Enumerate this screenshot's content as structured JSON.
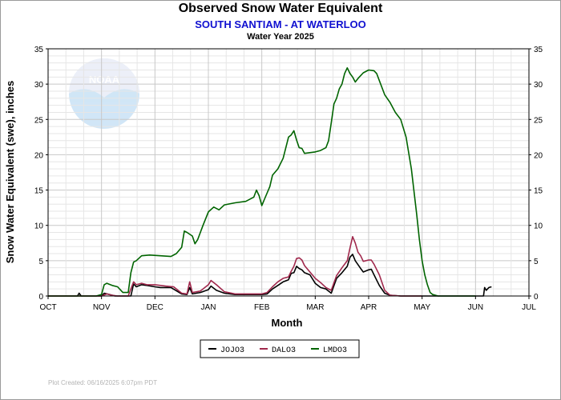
{
  "header": {
    "title": "Observed Snow Water Equivalent",
    "subtitle": "SOUTH SANTIAM - AT WATERLOO",
    "water_year": "Water Year 2025"
  },
  "footer": {
    "created": "Plot Created: 06/16/2025 6:07pm PDT"
  },
  "logo": {
    "text": "NOAA"
  },
  "colors": {
    "JOJO3": "#000000",
    "DALO3": "#a0284c",
    "LMDO3": "#006400"
  },
  "chart_data": {
    "type": "line",
    "xlabel": "Month",
    "ylabel": "Snow Water Equivalent (swe),  inches",
    "xlim": [
      0,
      9
    ],
    "ylim": [
      0,
      35
    ],
    "month_labels": [
      "OCT",
      "NOV",
      "DEC",
      "JAN",
      "FEB",
      "MAR",
      "APR",
      "MAY",
      "JUN",
      "JUL"
    ],
    "y_ticks": [
      0,
      5,
      10,
      15,
      20,
      25,
      30,
      35
    ],
    "grid": true,
    "legend_position": "bottom-center",
    "series": [
      {
        "name": "JOJO3",
        "color": "#000000",
        "points": [
          [
            0,
            0
          ],
          [
            0.55,
            0
          ],
          [
            0.58,
            0.4
          ],
          [
            0.62,
            0
          ],
          [
            1.0,
            0
          ],
          [
            1.05,
            0.4
          ],
          [
            1.15,
            0.2
          ],
          [
            1.25,
            0
          ],
          [
            1.55,
            0
          ],
          [
            1.6,
            1.7
          ],
          [
            1.65,
            1.3
          ],
          [
            1.75,
            1.6
          ],
          [
            1.85,
            1.5
          ],
          [
            2.0,
            1.3
          ],
          [
            2.1,
            1.2
          ],
          [
            2.3,
            1.2
          ],
          [
            2.5,
            0.3
          ],
          [
            2.6,
            0.2
          ],
          [
            2.65,
            1.2
          ],
          [
            2.7,
            0.3
          ],
          [
            2.85,
            0.5
          ],
          [
            3.0,
            0.9
          ],
          [
            3.05,
            1.4
          ],
          [
            3.15,
            0.8
          ],
          [
            3.3,
            0.4
          ],
          [
            3.5,
            0.2
          ],
          [
            3.8,
            0.2
          ],
          [
            4.0,
            0.2
          ],
          [
            4.1,
            0.3
          ],
          [
            4.2,
            1.0
          ],
          [
            4.3,
            1.5
          ],
          [
            4.4,
            2.0
          ],
          [
            4.5,
            2.3
          ],
          [
            4.55,
            3.2
          ],
          [
            4.6,
            3.3
          ],
          [
            4.65,
            4.2
          ],
          [
            4.7,
            3.9
          ],
          [
            4.75,
            3.7
          ],
          [
            4.8,
            3.3
          ],
          [
            4.9,
            3.0
          ],
          [
            5.0,
            1.8
          ],
          [
            5.1,
            1.2
          ],
          [
            5.2,
            1.0
          ],
          [
            5.3,
            0.4
          ],
          [
            5.4,
            2.5
          ],
          [
            5.5,
            3.3
          ],
          [
            5.6,
            4.2
          ],
          [
            5.65,
            5.5
          ],
          [
            5.7,
            5.9
          ],
          [
            5.75,
            5.0
          ],
          [
            5.85,
            3.9
          ],
          [
            5.9,
            3.4
          ],
          [
            6.0,
            3.7
          ],
          [
            6.05,
            3.8
          ],
          [
            6.1,
            3.0
          ],
          [
            6.2,
            1.5
          ],
          [
            6.3,
            0.4
          ],
          [
            6.4,
            0.1
          ],
          [
            6.6,
            0
          ],
          [
            7.0,
            0
          ],
          [
            8.15,
            0
          ],
          [
            8.17,
            1.2
          ],
          [
            8.2,
            0.8
          ],
          [
            8.25,
            1.2
          ],
          [
            8.3,
            1.3
          ]
        ]
      },
      {
        "name": "DALO3",
        "color": "#a0284c",
        "points": [
          [
            0,
            0
          ],
          [
            1.0,
            0
          ],
          [
            1.1,
            0.3
          ],
          [
            1.2,
            0.1
          ],
          [
            1.3,
            0
          ],
          [
            1.5,
            0
          ],
          [
            1.6,
            2.0
          ],
          [
            1.65,
            1.6
          ],
          [
            1.75,
            1.8
          ],
          [
            1.85,
            1.6
          ],
          [
            2.0,
            1.6
          ],
          [
            2.2,
            1.4
          ],
          [
            2.35,
            1.3
          ],
          [
            2.5,
            0.4
          ],
          [
            2.6,
            0.3
          ],
          [
            2.65,
            2.0
          ],
          [
            2.7,
            0.5
          ],
          [
            2.85,
            0.7
          ],
          [
            3.0,
            1.6
          ],
          [
            3.05,
            2.2
          ],
          [
            3.15,
            1.6
          ],
          [
            3.3,
            0.6
          ],
          [
            3.5,
            0.3
          ],
          [
            3.8,
            0.3
          ],
          [
            4.0,
            0.3
          ],
          [
            4.1,
            0.5
          ],
          [
            4.2,
            1.3
          ],
          [
            4.3,
            2.0
          ],
          [
            4.4,
            2.5
          ],
          [
            4.5,
            2.7
          ],
          [
            4.55,
            3.5
          ],
          [
            4.6,
            4.2
          ],
          [
            4.65,
            5.3
          ],
          [
            4.7,
            5.4
          ],
          [
            4.75,
            5.1
          ],
          [
            4.8,
            4.3
          ],
          [
            4.9,
            3.4
          ],
          [
            5.0,
            2.5
          ],
          [
            5.1,
            1.9
          ],
          [
            5.2,
            1.2
          ],
          [
            5.3,
            0.8
          ],
          [
            5.4,
            2.9
          ],
          [
            5.5,
            4.0
          ],
          [
            5.6,
            5.0
          ],
          [
            5.65,
            6.8
          ],
          [
            5.7,
            8.4
          ],
          [
            5.75,
            7.5
          ],
          [
            5.8,
            6.2
          ],
          [
            5.85,
            5.7
          ],
          [
            5.9,
            4.9
          ],
          [
            6.0,
            5.1
          ],
          [
            6.05,
            5.1
          ],
          [
            6.1,
            4.5
          ],
          [
            6.2,
            3.0
          ],
          [
            6.3,
            0.8
          ],
          [
            6.4,
            0.1
          ],
          [
            6.6,
            0
          ],
          [
            7.0,
            0
          ]
        ]
      },
      {
        "name": "LMDO3",
        "color": "#006400",
        "points": [
          [
            0,
            0
          ],
          [
            0.6,
            0
          ],
          [
            0.9,
            0
          ],
          [
            1.0,
            0.2
          ],
          [
            1.05,
            1.6
          ],
          [
            1.1,
            1.8
          ],
          [
            1.2,
            1.5
          ],
          [
            1.3,
            1.3
          ],
          [
            1.4,
            0.5
          ],
          [
            1.5,
            0.5
          ],
          [
            1.55,
            3.3
          ],
          [
            1.6,
            4.8
          ],
          [
            1.65,
            5.0
          ],
          [
            1.75,
            5.7
          ],
          [
            1.9,
            5.8
          ],
          [
            2.1,
            5.7
          ],
          [
            2.3,
            5.6
          ],
          [
            2.4,
            6.0
          ],
          [
            2.5,
            6.9
          ],
          [
            2.55,
            9.2
          ],
          [
            2.6,
            9.0
          ],
          [
            2.7,
            8.5
          ],
          [
            2.75,
            7.4
          ],
          [
            2.8,
            8.0
          ],
          [
            2.9,
            10.0
          ],
          [
            3.0,
            11.9
          ],
          [
            3.1,
            12.6
          ],
          [
            3.2,
            12.2
          ],
          [
            3.3,
            12.9
          ],
          [
            3.5,
            13.2
          ],
          [
            3.7,
            13.4
          ],
          [
            3.8,
            13.8
          ],
          [
            3.85,
            14.0
          ],
          [
            3.9,
            15.0
          ],
          [
            3.95,
            14.2
          ],
          [
            4.0,
            12.8
          ],
          [
            4.05,
            13.7
          ],
          [
            4.15,
            15.5
          ],
          [
            4.2,
            17.1
          ],
          [
            4.3,
            18.0
          ],
          [
            4.4,
            19.5
          ],
          [
            4.5,
            22.5
          ],
          [
            4.55,
            22.8
          ],
          [
            4.6,
            23.4
          ],
          [
            4.65,
            22.1
          ],
          [
            4.7,
            21.0
          ],
          [
            4.75,
            20.9
          ],
          [
            4.8,
            20.2
          ],
          [
            4.9,
            20.3
          ],
          [
            5.0,
            20.4
          ],
          [
            5.1,
            20.6
          ],
          [
            5.2,
            21.0
          ],
          [
            5.25,
            22.0
          ],
          [
            5.3,
            24.5
          ],
          [
            5.35,
            27.2
          ],
          [
            5.4,
            28.0
          ],
          [
            5.45,
            29.3
          ],
          [
            5.5,
            30.0
          ],
          [
            5.55,
            31.5
          ],
          [
            5.6,
            32.3
          ],
          [
            5.65,
            31.5
          ],
          [
            5.7,
            31.0
          ],
          [
            5.75,
            30.3
          ],
          [
            5.8,
            30.8
          ],
          [
            5.9,
            31.6
          ],
          [
            6.0,
            32.0
          ],
          [
            6.1,
            31.9
          ],
          [
            6.15,
            31.5
          ],
          [
            6.2,
            30.5
          ],
          [
            6.3,
            28.5
          ],
          [
            6.4,
            27.4
          ],
          [
            6.5,
            26.0
          ],
          [
            6.6,
            25.0
          ],
          [
            6.7,
            22.5
          ],
          [
            6.8,
            18.0
          ],
          [
            6.9,
            11.5
          ],
          [
            6.95,
            8.0
          ],
          [
            7.0,
            5.0
          ],
          [
            7.05,
            3.0
          ],
          [
            7.1,
            1.6
          ],
          [
            7.15,
            0.5
          ],
          [
            7.2,
            0.2
          ],
          [
            7.3,
            0
          ],
          [
            7.5,
            0
          ],
          [
            8.0,
            0
          ]
        ]
      }
    ]
  }
}
